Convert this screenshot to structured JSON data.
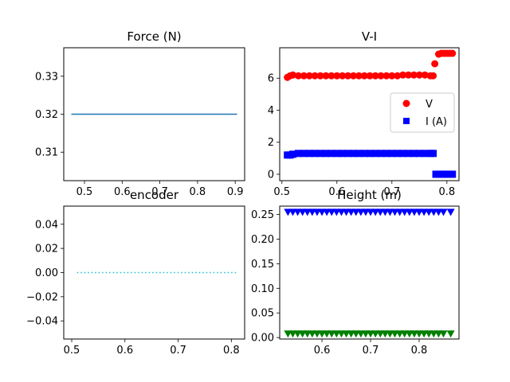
{
  "figure": {
    "background": "#ffffff"
  },
  "chart_data": [
    {
      "id": "force",
      "type": "line",
      "title": "Force (N)",
      "xlim": [
        0.445,
        0.925
      ],
      "ylim": [
        0.3025,
        0.3375
      ],
      "xticks": [
        0.5,
        0.6,
        0.7,
        0.8,
        0.9
      ],
      "yticks": [
        0.31,
        0.32,
        0.33
      ],
      "xtick_labels": [
        "0.5",
        "0.6",
        "0.7",
        "0.8",
        "0.9"
      ],
      "ytick_labels": [
        "0.31",
        "0.32",
        "0.33"
      ],
      "series": [
        {
          "style": "solid",
          "color": "#1f77b4",
          "x": [
            0.465,
            0.905
          ],
          "y": [
            0.32,
            0.32
          ]
        }
      ]
    },
    {
      "id": "vi",
      "type": "scatter",
      "title": "V-I",
      "xlim": [
        0.496,
        0.822
      ],
      "ylim": [
        -0.4,
        7.9
      ],
      "xticks": [
        0.5,
        0.6,
        0.7,
        0.8
      ],
      "yticks": [
        0,
        2,
        4,
        6
      ],
      "xtick_labels": [
        "0.5",
        "0.6",
        "0.7",
        "0.8"
      ],
      "ytick_labels": [
        "0",
        "2",
        "4",
        "6"
      ],
      "legend": {
        "position": "right",
        "entries": [
          "V",
          "I (A)"
        ]
      },
      "series": [
        {
          "name": "V",
          "marker": "circle",
          "color": "#ff0000",
          "x": [
            0.51,
            0.515,
            0.52,
            0.53,
            0.54,
            0.55,
            0.56,
            0.57,
            0.58,
            0.59,
            0.6,
            0.61,
            0.62,
            0.63,
            0.64,
            0.65,
            0.66,
            0.67,
            0.68,
            0.69,
            0.7,
            0.71,
            0.72,
            0.73,
            0.74,
            0.75,
            0.76,
            0.77,
            0.775,
            0.778,
            0.785,
            0.79,
            0.795,
            0.8,
            0.805,
            0.81
          ],
          "y": [
            6.05,
            6.15,
            6.2,
            6.15,
            6.15,
            6.15,
            6.15,
            6.15,
            6.15,
            6.15,
            6.15,
            6.15,
            6.15,
            6.15,
            6.15,
            6.15,
            6.15,
            6.15,
            6.15,
            6.15,
            6.15,
            6.15,
            6.2,
            6.2,
            6.2,
            6.2,
            6.2,
            6.15,
            6.15,
            6.9,
            7.5,
            7.55,
            7.55,
            7.55,
            7.55,
            7.55
          ]
        },
        {
          "name": "I (A)",
          "marker": "square",
          "color": "#0000ff",
          "x": [
            0.51,
            0.515,
            0.52,
            0.53,
            0.54,
            0.55,
            0.56,
            0.57,
            0.58,
            0.59,
            0.6,
            0.61,
            0.62,
            0.63,
            0.64,
            0.65,
            0.66,
            0.67,
            0.68,
            0.69,
            0.7,
            0.71,
            0.72,
            0.73,
            0.74,
            0.75,
            0.76,
            0.77,
            0.775,
            0.78,
            0.785,
            0.79,
            0.795,
            0.8,
            0.805,
            0.81
          ],
          "y": [
            1.2,
            1.2,
            1.25,
            1.3,
            1.3,
            1.3,
            1.3,
            1.3,
            1.3,
            1.3,
            1.3,
            1.3,
            1.3,
            1.3,
            1.3,
            1.3,
            1.3,
            1.3,
            1.3,
            1.3,
            1.3,
            1.3,
            1.3,
            1.3,
            1.3,
            1.3,
            1.3,
            1.3,
            1.3,
            0.0,
            0.0,
            0.0,
            0.0,
            0.0,
            0.0,
            0.0
          ]
        }
      ]
    },
    {
      "id": "encoder",
      "type": "line",
      "title": "encoder",
      "xlim": [
        0.485,
        0.825
      ],
      "ylim": [
        -0.055,
        0.055
      ],
      "xticks": [
        0.5,
        0.6,
        0.7,
        0.8
      ],
      "yticks": [
        -0.04,
        -0.02,
        0.0,
        0.02,
        0.04
      ],
      "xtick_labels": [
        "0.5",
        "0.6",
        "0.7",
        "0.8"
      ],
      "ytick_labels": [
        "−0.04",
        "−0.02",
        "0.00",
        "0.02",
        "0.04"
      ],
      "series": [
        {
          "style": "dotted",
          "color": "#17becf",
          "x": [
            0.51,
            0.81
          ],
          "y": [
            0.0,
            0.0
          ]
        }
      ]
    },
    {
      "id": "height",
      "type": "scatter",
      "title": "Height (m)",
      "xlim": [
        0.513,
        0.882
      ],
      "ylim": [
        -0.003,
        0.267
      ],
      "xticks": [
        0.6,
        0.7,
        0.8
      ],
      "yticks": [
        0.0,
        0.05,
        0.1,
        0.15,
        0.2,
        0.25
      ],
      "xtick_labels": [
        "0.6",
        "0.7",
        "0.8"
      ],
      "ytick_labels": [
        "0.00",
        "0.05",
        "0.10",
        "0.15",
        "0.20",
        "0.25"
      ],
      "series": [
        {
          "marker": "triangle-down",
          "color": "#0000ff",
          "x": [
            0.53,
            0.54,
            0.55,
            0.56,
            0.57,
            0.58,
            0.59,
            0.6,
            0.61,
            0.62,
            0.63,
            0.64,
            0.65,
            0.66,
            0.67,
            0.68,
            0.69,
            0.7,
            0.71,
            0.72,
            0.73,
            0.74,
            0.75,
            0.76,
            0.77,
            0.78,
            0.79,
            0.8,
            0.81,
            0.82,
            0.83,
            0.84,
            0.85,
            0.865
          ],
          "y": [
            0.255,
            0.255,
            0.255,
            0.255,
            0.255,
            0.255,
            0.255,
            0.255,
            0.255,
            0.255,
            0.255,
            0.255,
            0.255,
            0.255,
            0.255,
            0.255,
            0.255,
            0.255,
            0.255,
            0.255,
            0.255,
            0.255,
            0.255,
            0.255,
            0.255,
            0.255,
            0.255,
            0.255,
            0.255,
            0.255,
            0.255,
            0.255,
            0.255,
            0.255
          ]
        },
        {
          "marker": "triangle-down",
          "color": "#008000",
          "x": [
            0.53,
            0.54,
            0.55,
            0.56,
            0.57,
            0.58,
            0.59,
            0.6,
            0.61,
            0.62,
            0.63,
            0.64,
            0.65,
            0.66,
            0.67,
            0.68,
            0.69,
            0.7,
            0.71,
            0.72,
            0.73,
            0.74,
            0.75,
            0.76,
            0.77,
            0.78,
            0.79,
            0.8,
            0.81,
            0.82,
            0.83,
            0.84,
            0.85,
            0.865
          ],
          "y": [
            0.008,
            0.008,
            0.008,
            0.008,
            0.008,
            0.008,
            0.008,
            0.008,
            0.008,
            0.008,
            0.008,
            0.008,
            0.008,
            0.008,
            0.008,
            0.008,
            0.008,
            0.008,
            0.008,
            0.008,
            0.008,
            0.008,
            0.008,
            0.008,
            0.008,
            0.008,
            0.008,
            0.008,
            0.008,
            0.008,
            0.008,
            0.008,
            0.008,
            0.008
          ]
        }
      ]
    }
  ]
}
